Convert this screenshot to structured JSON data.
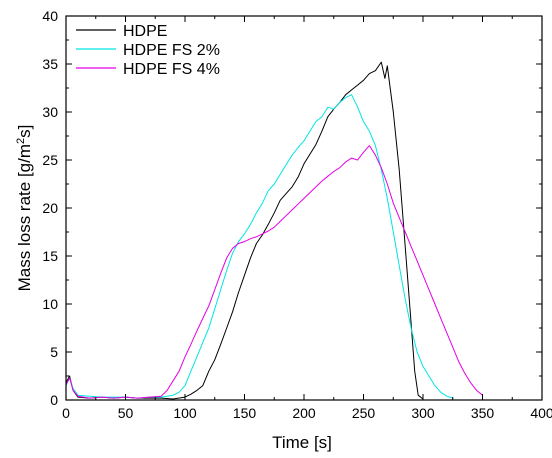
{
  "chart_data": {
    "type": "line",
    "title": "",
    "xlabel": "Time [s]",
    "ylabel_prefix": "Mass loss rate [g/m",
    "ylabel_sup": "2",
    "ylabel_suffix": "s]",
    "xlim": [
      0,
      400
    ],
    "ylim": [
      0,
      40
    ],
    "x_ticks": [
      0,
      50,
      100,
      150,
      200,
      250,
      300,
      350,
      400
    ],
    "y_ticks": [
      0,
      5,
      10,
      15,
      20,
      25,
      30,
      35,
      40
    ],
    "grid": false,
    "legend_position": "top-left",
    "series": [
      {
        "name": "HDPE",
        "color": "#000000",
        "x": [
          0,
          3,
          6,
          10,
          20,
          30,
          40,
          50,
          60,
          70,
          80,
          90,
          100,
          105,
          110,
          115,
          120,
          125,
          130,
          135,
          140,
          145,
          150,
          155,
          160,
          165,
          170,
          175,
          180,
          185,
          190,
          195,
          200,
          205,
          210,
          215,
          220,
          225,
          230,
          235,
          240,
          245,
          250,
          255,
          260,
          265,
          268,
          270,
          275,
          280,
          285,
          290,
          293,
          296,
          300
        ],
        "y": [
          1.8,
          2.5,
          1.0,
          0.3,
          0.2,
          0.3,
          0.2,
          0.3,
          0.2,
          0.2,
          0.2,
          0.1,
          0.3,
          0.6,
          1.0,
          1.5,
          3.0,
          4.2,
          5.8,
          7.5,
          9.2,
          11.2,
          13.0,
          14.8,
          16.3,
          17.2,
          18.3,
          19.5,
          20.8,
          21.5,
          22.2,
          23.2,
          24.6,
          25.6,
          26.6,
          28.0,
          29.5,
          30.3,
          31.0,
          31.8,
          32.3,
          32.8,
          33.3,
          34.0,
          34.3,
          35.2,
          33.5,
          34.8,
          30.0,
          24.0,
          16.0,
          8.0,
          3.0,
          0.5,
          0.1
        ]
      },
      {
        "name": "HDPE FS 2%",
        "color": "#00e5e5",
        "x": [
          0,
          3,
          6,
          10,
          20,
          30,
          40,
          50,
          60,
          70,
          80,
          90,
          95,
          100,
          105,
          110,
          115,
          120,
          125,
          130,
          135,
          140,
          145,
          150,
          155,
          160,
          165,
          170,
          175,
          180,
          185,
          190,
          195,
          200,
          205,
          210,
          215,
          220,
          225,
          230,
          235,
          240,
          245,
          250,
          255,
          260,
          265,
          270,
          275,
          280,
          285,
          290,
          295,
          300,
          305,
          310,
          315,
          320,
          325
        ],
        "y": [
          1.5,
          2.3,
          1.2,
          0.5,
          0.4,
          0.3,
          0.3,
          0.3,
          0.2,
          0.3,
          0.3,
          0.5,
          0.8,
          1.5,
          3.0,
          4.5,
          6.0,
          7.5,
          9.5,
          11.5,
          13.5,
          15.3,
          16.5,
          17.3,
          18.3,
          19.5,
          20.5,
          21.8,
          22.5,
          23.5,
          24.5,
          25.5,
          26.3,
          27.0,
          28.0,
          29.0,
          29.5,
          30.5,
          30.3,
          31.0,
          31.5,
          31.8,
          30.5,
          29.0,
          28.0,
          26.5,
          24.0,
          21.0,
          17.5,
          14.0,
          10.5,
          7.5,
          5.0,
          3.5,
          2.5,
          1.5,
          0.8,
          0.4,
          0.2
        ]
      },
      {
        "name": "HDPE FS 4%",
        "color": "#e600e6",
        "x": [
          0,
          3,
          6,
          10,
          20,
          30,
          40,
          50,
          60,
          70,
          80,
          85,
          90,
          95,
          100,
          105,
          110,
          115,
          120,
          125,
          130,
          135,
          140,
          145,
          150,
          155,
          160,
          165,
          170,
          175,
          180,
          185,
          190,
          195,
          200,
          205,
          210,
          215,
          220,
          225,
          230,
          235,
          240,
          245,
          250,
          255,
          260,
          265,
          270,
          275,
          280,
          285,
          290,
          295,
          300,
          305,
          310,
          315,
          320,
          325,
          330,
          335,
          340,
          345,
          350
        ],
        "y": [
          1.6,
          2.3,
          1.0,
          0.4,
          0.2,
          0.3,
          0.2,
          0.3,
          0.2,
          0.3,
          0.4,
          1.0,
          2.0,
          3.0,
          4.5,
          5.8,
          7.2,
          8.5,
          9.8,
          11.5,
          13.2,
          14.8,
          15.8,
          16.3,
          16.5,
          16.8,
          17.0,
          17.3,
          17.6,
          18.0,
          18.6,
          19.2,
          19.8,
          20.4,
          21.0,
          21.6,
          22.2,
          22.8,
          23.3,
          23.8,
          24.2,
          24.8,
          25.2,
          25.0,
          25.8,
          26.5,
          25.5,
          24.2,
          22.5,
          20.5,
          19.0,
          17.5,
          16.0,
          14.5,
          13.0,
          11.5,
          10.0,
          8.5,
          7.0,
          5.5,
          4.0,
          2.8,
          1.8,
          1.0,
          0.5
        ]
      }
    ]
  }
}
